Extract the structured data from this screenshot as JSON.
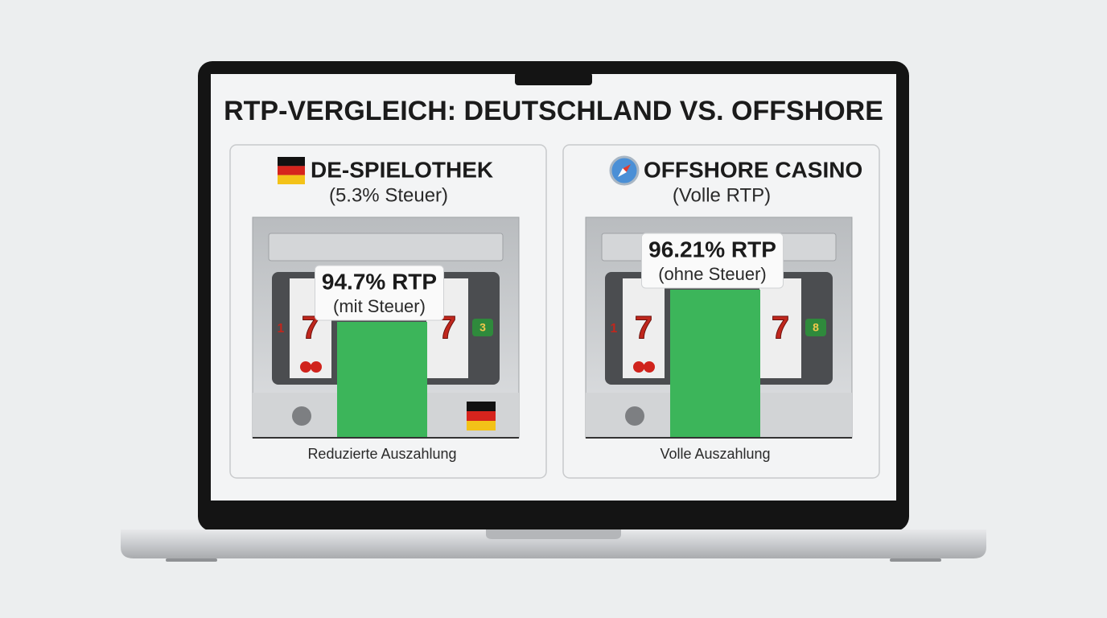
{
  "title": "RTP-VERGLEICH: DEUTSCHLAND VS. OFFSHORE",
  "panels": [
    {
      "heading": "DE-SPIELOTHEK",
      "subheading": "(5.3% Steuer)",
      "rtp_label": "94.7% RTP",
      "rtp_note": "(mit Steuer)",
      "caption": "Reduzierte Auszahlung",
      "reel_texts": [
        "1",
        "7",
        "7",
        "3"
      ]
    },
    {
      "heading": "OFFSHORE CASINO",
      "subheading": "(Volle RTP)",
      "rtp_label": "96.21% RTP",
      "rtp_note": "(ohne Steuer)",
      "caption": "Volle Auszahlung",
      "reel_texts": [
        "1",
        "7",
        "7",
        "8"
      ]
    }
  ]
}
